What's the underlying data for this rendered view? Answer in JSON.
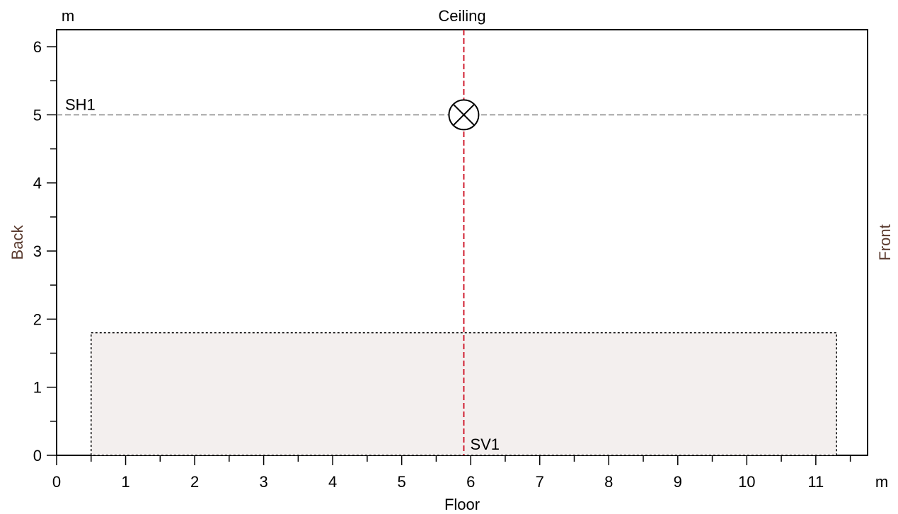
{
  "chart_data": {
    "type": "diagram",
    "title": "Ceiling",
    "xlabel": "Floor",
    "left_label": "Back",
    "right_label": "Front",
    "x_unit": "m",
    "y_unit": "m",
    "xlim": [
      0,
      11.75
    ],
    "ylim": [
      0,
      6.25
    ],
    "x_ticks": [
      0,
      1,
      2,
      3,
      4,
      5,
      6,
      7,
      8,
      9,
      10,
      11
    ],
    "y_ticks": [
      0,
      1,
      2,
      3,
      4,
      5,
      6
    ],
    "minor_tick_step": 0.5,
    "zone": {
      "x0": 0.5,
      "x1": 11.3,
      "y0": 0,
      "y1": 1.8
    },
    "horizontal_section": {
      "name": "SH1",
      "y": 5
    },
    "vertical_section": {
      "name": "SV1",
      "x": 5.9
    },
    "source": {
      "symbol": "circle-cross",
      "x": 5.9,
      "y": 5
    },
    "colors": {
      "section_h": "#8c8c8c",
      "section_v": "#d01c2e",
      "zone_fill": "#f3efee",
      "side_label": "#5a3a2e"
    }
  }
}
